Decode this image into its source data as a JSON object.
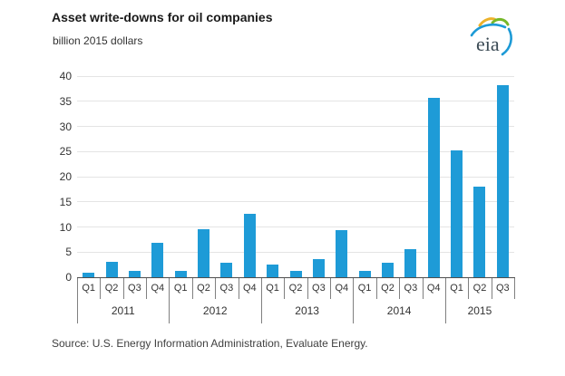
{
  "header": {
    "title": "Asset write-downs for oil companies",
    "subtitle": "billion 2015 dollars",
    "logo_text": "eia"
  },
  "source": {
    "text": "Source:  U.S. Energy Information Administration, Evaluate Energy."
  },
  "colors": {
    "bar": "#1e9bd7",
    "gridline": "#e4e4e4",
    "axis_line": "#4d4d4d",
    "separator": "#808080",
    "text": "#333333",
    "title_text": "#1a1a1a",
    "logo_text": "#3b4a54",
    "logo_yellow": "#ecb22a",
    "logo_green": "#76b82a",
    "logo_blue": "#1c9ad6"
  },
  "chart_data": {
    "type": "bar",
    "title": "Asset write-downs for oil companies",
    "xlabel": "",
    "ylabel": "billion 2015 dollars",
    "ylim": [
      0,
      40
    ],
    "yticks": [
      0,
      5,
      10,
      15,
      20,
      25,
      30,
      35,
      40
    ],
    "grid": true,
    "legend": false,
    "categories": [
      "2011 Q1",
      "2011 Q2",
      "2011 Q3",
      "2011 Q4",
      "2012 Q1",
      "2012 Q2",
      "2012 Q3",
      "2012 Q4",
      "2013 Q1",
      "2013 Q2",
      "2013 Q3",
      "2013 Q4",
      "2014 Q1",
      "2014 Q2",
      "2014 Q3",
      "2014 Q4",
      "2015 Q1",
      "2015 Q2",
      "2015 Q3"
    ],
    "values": [
      0.9,
      3.1,
      1.3,
      6.8,
      1.3,
      9.5,
      2.9,
      12.7,
      2.6,
      1.3,
      3.6,
      9.3,
      1.2,
      2.9,
      5.6,
      35.7,
      25.2,
      18.1,
      38.2
    ],
    "groups": [
      {
        "year": "2011",
        "quarters": [
          "Q1",
          "Q2",
          "Q3",
          "Q4"
        ],
        "values": [
          0.9,
          3.1,
          1.3,
          6.8
        ]
      },
      {
        "year": "2012",
        "quarters": [
          "Q1",
          "Q2",
          "Q3",
          "Q4"
        ],
        "values": [
          1.3,
          9.5,
          2.9,
          12.7
        ]
      },
      {
        "year": "2013",
        "quarters": [
          "Q1",
          "Q2",
          "Q3",
          "Q4"
        ],
        "values": [
          2.6,
          1.3,
          3.6,
          9.3
        ]
      },
      {
        "year": "2014",
        "quarters": [
          "Q1",
          "Q2",
          "Q3",
          "Q4"
        ],
        "values": [
          1.2,
          2.9,
          5.6,
          35.7
        ]
      },
      {
        "year": "2015",
        "quarters": [
          "Q1",
          "Q2",
          "Q3"
        ],
        "values": [
          25.2,
          18.1,
          38.2
        ]
      }
    ]
  }
}
